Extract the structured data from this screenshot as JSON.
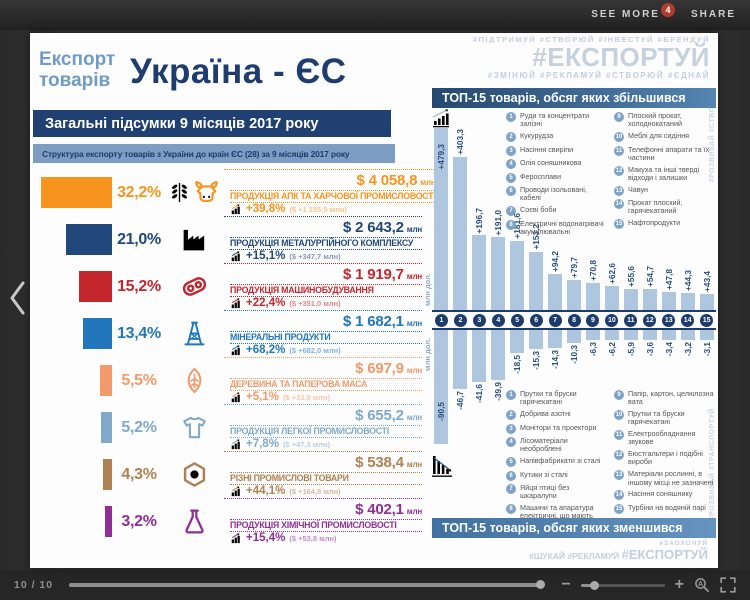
{
  "viewer": {
    "see_more": "SEE MORE",
    "notification_count": "4",
    "share": "SHARE",
    "page_indicator": "10 / 10",
    "zoom_out": "−",
    "zoom_in": "+"
  },
  "infographic": {
    "kicker": "Експорт\nтоварів",
    "title": "Україна - ЄС",
    "subtitle": "Загальні підсумки 9 місяців 2017 року",
    "structure_heading": "Структура експорту товарів з України  до країн ЄС (28)  за 9 місяців 2017 року",
    "unit_label": "млн",
    "categories": [
      {
        "pct": "32,2%",
        "pct_value": 32.2,
        "color": "#F7941E",
        "amount": "$ 4 058,8",
        "name": "ПРОДУКЦІЯ АПК ТА ХАРЧОВОЇ ПРОМИСЛОВОСТІ",
        "growth": "+39,8%",
        "growth_note": "($ +1 155,9 млн)"
      },
      {
        "pct": "21,0%",
        "pct_value": 21.0,
        "color": "#21477B",
        "amount": "$ 2 643,2",
        "name": "ПРОДУКЦІЯ МЕТАЛУРГІЙНОГО КОМПЛЕКСУ",
        "growth": "+15,1%",
        "growth_note": "($ +347,7 млн)"
      },
      {
        "pct": "15,2%",
        "pct_value": 15.2,
        "color": "#C4262E",
        "amount": "$ 1 919,7",
        "name": "ПРОДУКЦІЯ МАШИНОБУДУВАННЯ",
        "growth": "+22,4%",
        "growth_note": "($ +351,0 млн)"
      },
      {
        "pct": "13,4%",
        "pct_value": 13.4,
        "color": "#2176BC",
        "amount": "$ 1 682,1",
        "name": "МІНЕРАЛЬНІ ПРОДУКТИ",
        "growth": "+68,2%",
        "growth_note": "($ +682,0 млн)"
      },
      {
        "pct": "5,5%",
        "pct_value": 5.5,
        "color": "#F29A6B",
        "amount": "$ 697,9",
        "name": "ДЕРЕВИНА ТА ПАПЕРОВА МАСА",
        "growth": "+5,1%",
        "growth_note": "($ +33,9 млн)"
      },
      {
        "pct": "5,2%",
        "pct_value": 5.2,
        "color": "#7FA8C9",
        "amount": "$ 655,2",
        "name": "ПРОДУКЦІЯ ЛЕГКОЇ ПРОМИСЛОВОСТІ",
        "growth": "+7,8%",
        "growth_note": "($ +47,3 млн)"
      },
      {
        "pct": "4,3%",
        "pct_value": 4.3,
        "color": "#AE8153",
        "amount": "$ 538,4",
        "name": "РІЗНІ ПРОМИСЛОВІ ТОВАРИ",
        "growth": "+44,1%",
        "growth_note": "($ +164,8 млн)"
      },
      {
        "pct": "3,2%",
        "pct_value": 3.2,
        "color": "#8F2F96",
        "amount": "$ 402,1",
        "name": "ПРОДУКЦІЯ ХІМІЧНОЇ ПРОМИСЛОВОСТІ",
        "growth": "+15,4%",
        "growth_note": "($ +53,8 млн)"
      }
    ],
    "hashtags": {
      "top_row1": "#ПІДТРИМУЙ  #СТВОРЮЙ  #ІНВЕСТУЙ  #БРЕНДУЙ",
      "top_main": "#ЕКСПОРТУЙ",
      "top_row3": "#ЗМІНЮЙ  #РЕКЛАМУЙ  #СТВОРЮЙ  #ЄДНАЙ",
      "bottom_small": "#ЗАОХОЧУЙ",
      "bottom_row": "#ШУКАЙ #РЕКЛАМУЙ",
      "bottom_main": "#ЕКСПОРТУЙ",
      "side_top": "#РОЗВИВАЙ #СТВОРЮЙ",
      "side_bottom": "#РОЗВИВАЙ #ТРАНСПОРТУЙ"
    }
  },
  "chart_data": [
    {
      "type": "bar",
      "title": "ТОП-15 товарів, обсяг яких збільшився",
      "ylabel": "млн дол.",
      "ylim": [
        0,
        480
      ],
      "bar_color": "#AEC6DE",
      "axis_badge_color": "#1E3C6B",
      "legend_position": "overlay-right",
      "categories": [
        "1",
        "2",
        "3",
        "4",
        "5",
        "6",
        "7",
        "8",
        "9",
        "10",
        "11",
        "12",
        "13",
        "14",
        "15"
      ],
      "values": [
        479.3,
        403.3,
        196.7,
        191.0,
        181.6,
        153.2,
        94.2,
        79.7,
        70.8,
        62.6,
        55.6,
        54.7,
        47.8,
        44.3,
        43.4
      ],
      "value_labels": [
        "+479,3",
        "+403,3",
        "+196,7",
        "+191,0",
        "+181,6",
        "+153,2",
        "+94,2",
        "+79,7",
        "+70,8",
        "+62,6",
        "+55,6",
        "+54,7",
        "+47,8",
        "+44,3",
        "+43,4"
      ],
      "legend": [
        "Руди та концентрати залізні",
        "Кукурудза",
        "Насіння свиріпи",
        "Олія соняшникова",
        "Феросплави",
        "Проводи ізольовані, кабелі",
        "Соєві боби",
        "Електричні водонагрівачі акумулювальні",
        "Плоский прокат, холоднокатаний",
        "Меблі для сидіння",
        "Телефонні апарати та їх частини",
        "Макуха та інші тверді відходи і залишки",
        "Чавун",
        "Прокат плоский, гарячекатаний",
        "Нафтопродукти"
      ]
    },
    {
      "type": "bar",
      "title": "ТОП-15 товарів, обсяг яких зменшився",
      "ylabel": "млн дол.",
      "ylim": [
        -95,
        0
      ],
      "bar_color": "#AEC6DE",
      "axis_badge_color": "#1E3C6B",
      "legend_position": "overlay-right",
      "categories": [
        "1",
        "2",
        "3",
        "4",
        "5",
        "6",
        "7",
        "8",
        "9",
        "10",
        "11",
        "12",
        "13",
        "14",
        "15"
      ],
      "values": [
        -90.5,
        -46.7,
        -41.6,
        -39.9,
        -18.5,
        -15.3,
        -14.3,
        -10.3,
        -6.3,
        -6.2,
        -5.9,
        -3.6,
        -3.4,
        -3.2,
        -3.1
      ],
      "value_labels": [
        "-90,5",
        "-46,7",
        "-41,6",
        "-39,9",
        "-18,5",
        "-15,3",
        "-14,3",
        "-10,3",
        "-6,3",
        "-6,2",
        "-5,9",
        "-3,6",
        "-3,4",
        "-3,2",
        "-3,1"
      ],
      "legend": [
        "Прутки та бруски гарячекатані",
        "Добрива азотні",
        "Монітори та проектори",
        "Лісоматеріали необроблені",
        "Напівфабрикати зі сталі",
        "Кутики зі сталі",
        "Яйця птиці без шкаралупи",
        "Машини та апаратура електричні, що мають індивідуальні функції",
        "Папір, картон, целюлозна вата",
        "Прутки та бруски гарячекатані",
        "Електрообладнання звукове",
        "Бюстгальтери і подібні вироби",
        "Матеріали рослинні, в іншому місці не зазначені",
        "Насіння соняшнику",
        "Турбіни на водяній парі"
      ]
    }
  ]
}
